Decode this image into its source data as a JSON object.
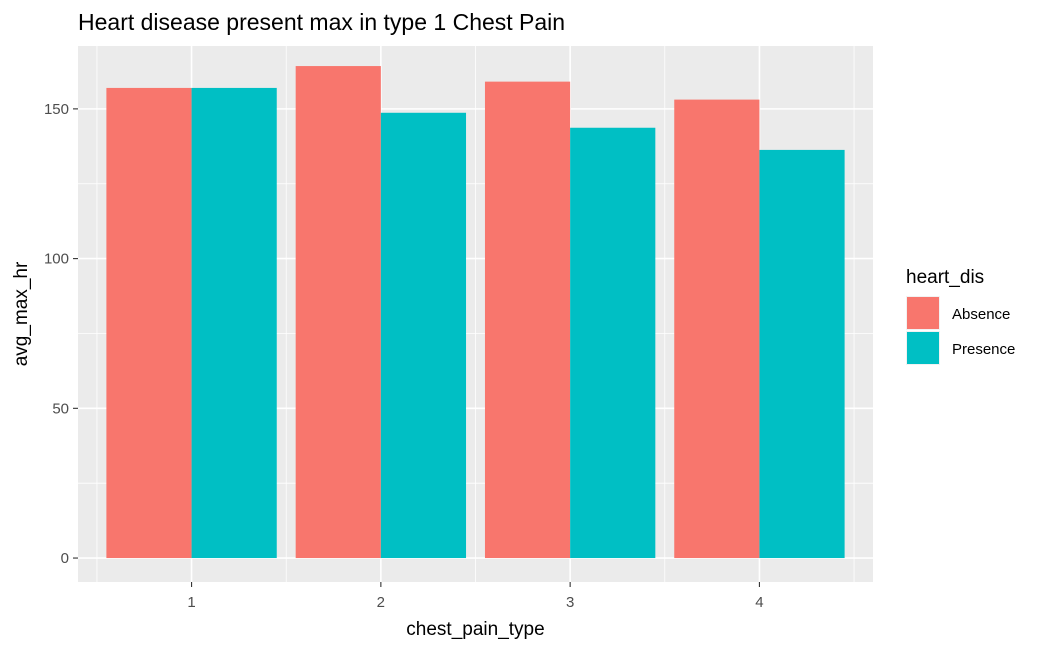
{
  "chart_data": {
    "type": "bar",
    "title": "Heart disease present max in type 1 Chest Pain",
    "xlabel": "chest_pain_type",
    "ylabel": "avg_max_hr",
    "categories": [
      "1",
      "2",
      "3",
      "4"
    ],
    "series": [
      {
        "name": "Absence",
        "color": "#F8766D",
        "values": [
          157.0,
          164.3,
          159.1,
          153.1
        ]
      },
      {
        "name": "Presence",
        "color": "#00BFC4",
        "values": [
          157.0,
          148.7,
          143.7,
          136.3
        ]
      }
    ],
    "ylim": [
      -8,
      171
    ],
    "yticks": [
      0,
      50,
      100,
      150
    ],
    "grid": true,
    "legend": {
      "title": "heart_dis",
      "placement": "right"
    }
  }
}
